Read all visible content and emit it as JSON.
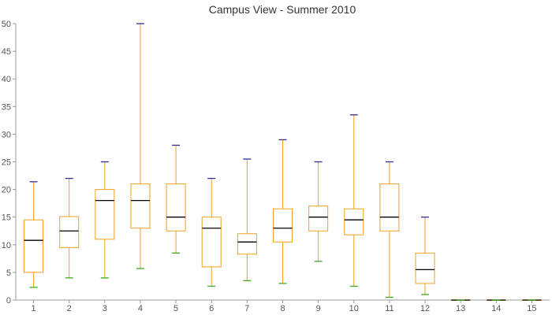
{
  "chart_data": {
    "type": "boxplot",
    "title": "Campus View - Summer 2010",
    "xlabel": "",
    "ylabel": "",
    "ylim": [
      0,
      50
    ],
    "yticks": [
      0,
      5,
      10,
      15,
      20,
      25,
      30,
      35,
      40,
      45,
      50
    ],
    "categories": [
      "1",
      "2",
      "3",
      "4",
      "5",
      "6",
      "7",
      "8",
      "9",
      "10",
      "11",
      "12",
      "13",
      "14",
      "15"
    ],
    "boxes": [
      {
        "min": 2.3,
        "q1": 5.0,
        "median": 10.8,
        "q3": 14.5,
        "max": 21.4
      },
      {
        "min": 4.0,
        "q1": 9.5,
        "median": 12.5,
        "q3": 15.1,
        "max": 22.0
      },
      {
        "min": 4.0,
        "q1": 11.0,
        "median": 18.0,
        "q3": 20.0,
        "max": 25.0
      },
      {
        "min": 5.7,
        "q1": 13.0,
        "median": 18.0,
        "q3": 21.0,
        "max": 50.0
      },
      {
        "min": 8.5,
        "q1": 12.5,
        "median": 15.0,
        "q3": 21.0,
        "max": 28.0
      },
      {
        "min": 2.5,
        "q1": 6.0,
        "median": 13.0,
        "q3": 15.0,
        "max": 22.0
      },
      {
        "min": 3.5,
        "q1": 8.3,
        "median": 10.5,
        "q3": 12.0,
        "max": 25.5
      },
      {
        "min": 3.0,
        "q1": 10.5,
        "median": 13.0,
        "q3": 16.5,
        "max": 29.0
      },
      {
        "min": 7.0,
        "q1": 12.5,
        "median": 15.0,
        "q3": 17.0,
        "max": 25.0
      },
      {
        "min": 2.5,
        "q1": 11.8,
        "median": 14.5,
        "q3": 16.5,
        "max": 33.5
      },
      {
        "min": 0.5,
        "q1": 12.5,
        "median": 15.0,
        "q3": 21.0,
        "max": 25.0
      },
      {
        "min": 1.0,
        "q1": 3.0,
        "median": 5.5,
        "q3": 8.5,
        "max": 15.0
      },
      {
        "min": 0,
        "q1": 0,
        "median": 0,
        "q3": 0,
        "max": 0
      },
      {
        "min": 0,
        "q1": 0,
        "median": 0,
        "q3": 0,
        "max": 0
      },
      {
        "min": 0,
        "q1": 0,
        "median": 0,
        "q3": 0,
        "max": 0
      }
    ],
    "grid": false,
    "legend": "none",
    "colors": {
      "box": "#f0a020",
      "median": "#000000",
      "max_whisker_cap": "#3a2aa0",
      "min_whisker_cap": "#3aaa20",
      "axis": "#999999"
    }
  }
}
